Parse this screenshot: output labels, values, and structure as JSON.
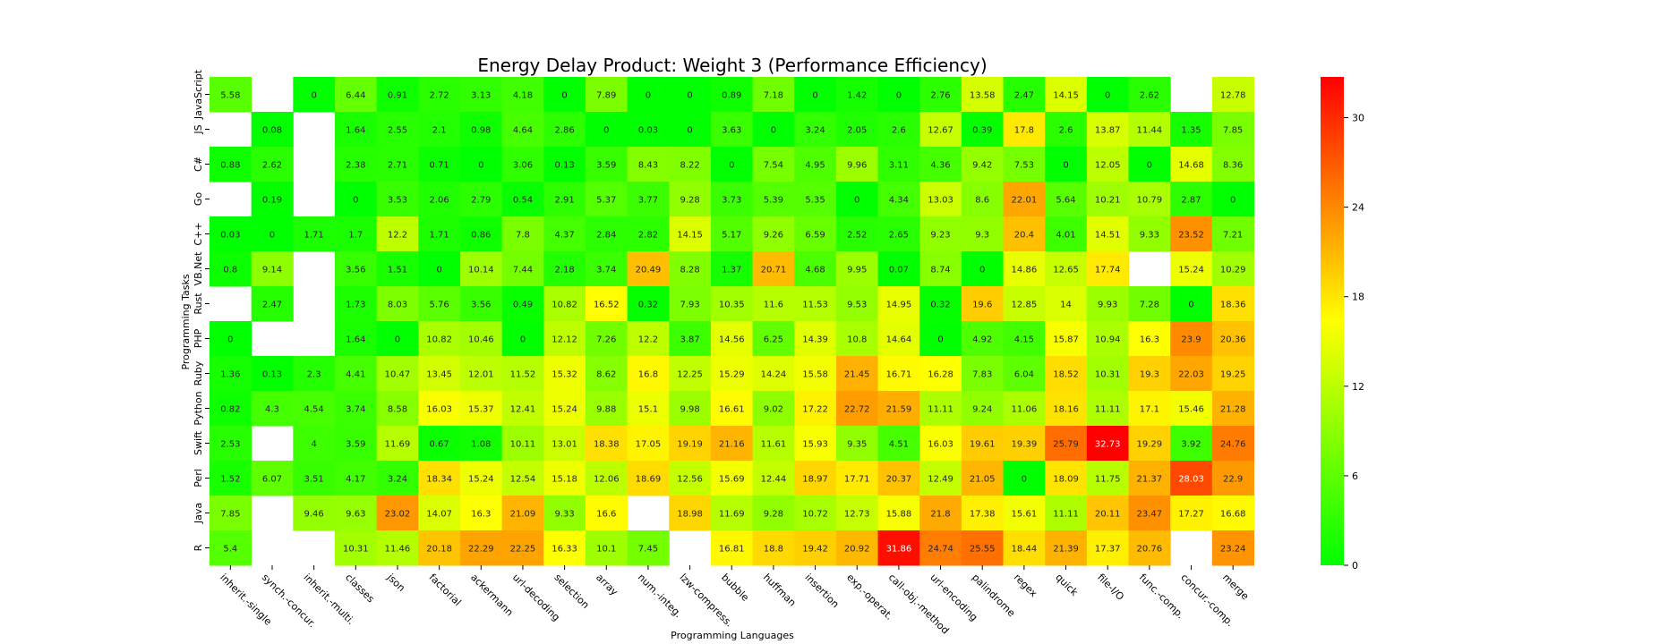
{
  "chart_data": {
    "type": "heatmap",
    "title": "Energy Delay Product: Weight 3 (Performance Efficiency)",
    "xlabel": "Programming Languages",
    "ylabel": "Programming Tasks",
    "columns": [
      "inherit.-single",
      "synch.-concur.",
      "inherit.-multi.",
      "classes",
      "json",
      "factorial",
      "ackermann",
      "url-decoding",
      "selection",
      "array",
      "num.-integ.",
      "lzw-compress.",
      "bubble",
      "huffman",
      "insertion",
      "exp.-operat.",
      "call-obj.-method",
      "url-encoding",
      "palindrome",
      "regex",
      "quick",
      "file-I/O",
      "func.-comp.",
      "concur.-comp.",
      "merge"
    ],
    "rows": [
      "JavaScript",
      "JS",
      "C#",
      "Go",
      "C++",
      "VB.Net",
      "Rust",
      "PHP",
      "Ruby",
      "Python",
      "Swift",
      "Perl",
      "Java",
      "R"
    ],
    "values": [
      [
        5.58,
        null,
        0,
        6.44,
        0.91,
        2.72,
        3.13,
        4.18,
        0,
        7.89,
        0,
        0,
        0.89,
        7.18,
        0,
        1.42,
        0,
        2.76,
        13.58,
        2.47,
        14.15,
        0,
        2.62,
        null,
        12.78
      ],
      [
        null,
        0.08,
        null,
        1.64,
        2.55,
        2.1,
        0.98,
        4.64,
        2.86,
        0,
        0.03,
        0,
        3.63,
        0,
        3.24,
        2.05,
        2.6,
        12.67,
        0.39,
        17.8,
        2.6,
        13.87,
        11.44,
        1.35,
        7.85
      ],
      [
        0.88,
        2.62,
        null,
        2.38,
        2.71,
        0.71,
        0,
        3.06,
        0.13,
        3.59,
        8.43,
        8.22,
        0,
        7.54,
        4.95,
        9.96,
        3.11,
        4.36,
        9.42,
        7.53,
        0,
        12.05,
        0,
        14.68,
        8.36
      ],
      [
        null,
        0.19,
        null,
        0,
        3.53,
        2.06,
        2.79,
        0.54,
        2.91,
        5.37,
        3.77,
        9.28,
        3.73,
        5.39,
        5.35,
        0,
        4.34,
        13.03,
        8.6,
        22.01,
        5.64,
        10.21,
        10.79,
        2.87,
        0
      ],
      [
        0.03,
        0,
        1.71,
        1.7,
        12.2,
        1.71,
        0.86,
        7.8,
        4.37,
        2.84,
        2.82,
        14.15,
        5.17,
        9.26,
        6.59,
        2.52,
        2.65,
        9.23,
        9.3,
        20.4,
        4.01,
        14.51,
        9.33,
        23.52,
        7.21
      ],
      [
        0.8,
        9.14,
        null,
        3.56,
        1.51,
        0,
        10.14,
        7.44,
        2.18,
        3.74,
        20.49,
        8.28,
        1.37,
        20.71,
        4.68,
        9.95,
        0.07,
        8.74,
        0,
        14.86,
        12.65,
        17.74,
        null,
        15.24,
        10.29
      ],
      [
        null,
        2.47,
        null,
        1.73,
        8.03,
        5.76,
        3.56,
        0.49,
        10.82,
        16.52,
        0.32,
        7.93,
        10.35,
        11.6,
        11.53,
        9.53,
        14.95,
        0.32,
        19.6,
        12.85,
        14,
        9.93,
        7.28,
        0,
        18.36
      ],
      [
        0,
        null,
        null,
        1.64,
        0,
        10.82,
        10.46,
        0,
        12.12,
        7.26,
        12.2,
        3.87,
        14.56,
        6.25,
        14.39,
        10.8,
        14.64,
        0,
        4.92,
        4.15,
        15.87,
        10.94,
        16.3,
        23.9,
        20.36
      ],
      [
        1.36,
        0.13,
        2.3,
        4.41,
        10.47,
        13.45,
        12.01,
        11.52,
        15.32,
        8.62,
        16.8,
        12.25,
        15.29,
        14.24,
        15.58,
        21.45,
        16.71,
        16.28,
        7.83,
        6.04,
        18.52,
        10.31,
        19.3,
        22.03,
        19.25
      ],
      [
        0.82,
        4.3,
        4.54,
        3.74,
        8.58,
        16.03,
        15.37,
        12.41,
        15.24,
        9.88,
        15.1,
        9.98,
        16.61,
        9.02,
        17.22,
        22.72,
        21.59,
        11.11,
        9.24,
        11.06,
        18.16,
        11.11,
        17.1,
        15.46,
        21.28
      ],
      [
        2.53,
        null,
        4,
        3.59,
        11.69,
        0.67,
        1.08,
        10.11,
        13.01,
        18.38,
        17.05,
        19.19,
        21.16,
        11.61,
        15.93,
        9.35,
        4.51,
        16.03,
        19.61,
        19.39,
        25.79,
        32.73,
        19.29,
        3.92,
        24.76
      ],
      [
        1.52,
        6.07,
        3.51,
        4.17,
        3.24,
        18.34,
        15.24,
        12.54,
        15.18,
        12.06,
        18.69,
        12.56,
        15.69,
        12.44,
        18.97,
        17.71,
        20.37,
        12.49,
        21.05,
        0,
        18.09,
        11.75,
        21.37,
        28.03,
        22.9
      ],
      [
        7.85,
        null,
        9.46,
        9.63,
        23.02,
        14.07,
        16.3,
        21.09,
        9.33,
        16.6,
        null,
        18.98,
        11.69,
        9.28,
        10.72,
        12.73,
        15.88,
        21.8,
        17.38,
        15.61,
        11.11,
        20.11,
        23.47,
        17.27,
        16.68
      ],
      [
        5.4,
        null,
        null,
        10.31,
        11.46,
        20.18,
        22.29,
        22.25,
        16.33,
        10.1,
        7.45,
        null,
        16.81,
        18.8,
        19.42,
        20.92,
        31.86,
        24.74,
        25.55,
        18.44,
        21.39,
        17.37,
        20.76,
        null,
        23.24
      ]
    ],
    "color_scale": {
      "min": 0,
      "max": 32.73,
      "colors": [
        "#00ff00",
        "#ffff00",
        "#ff0000"
      ]
    },
    "colorbar_ticks": [
      0,
      6,
      12,
      18,
      24,
      30
    ]
  }
}
